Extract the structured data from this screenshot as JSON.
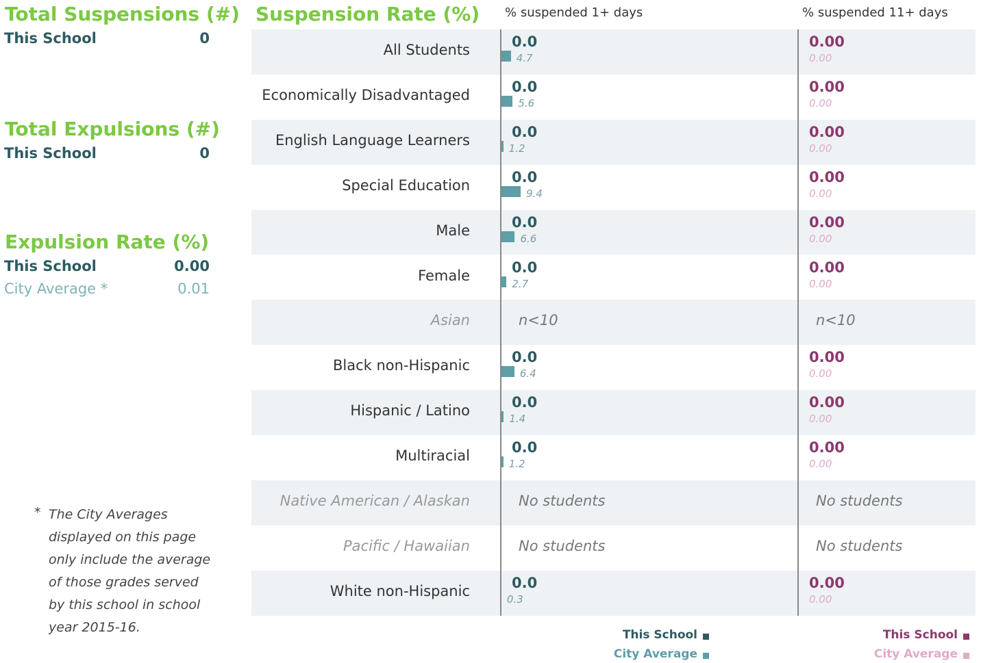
{
  "summary": [
    {
      "title": "Total Suspensions (#)",
      "rows": [
        {
          "label": "This School",
          "value": "0"
        }
      ]
    },
    {
      "title": "Total Expulsions (#)",
      "rows": [
        {
          "label": "This School",
          "value": "0"
        }
      ]
    },
    {
      "title": "Expulsion Rate (%)",
      "rows": [
        {
          "label": "This School",
          "value": "0.00"
        },
        {
          "label": "City Average *",
          "value": "0.01"
        }
      ]
    }
  ],
  "footnote": {
    "mark": "*",
    "text": "The City Averages displayed on this page only include the average of those grades served by this school in school year 2015-16."
  },
  "rates": {
    "title": "Suspension Rate (%)",
    "columns": [
      "% suspended 1+ days",
      "% suspended 11+ days"
    ],
    "rows": [
      {
        "group": "All Students",
        "school1": "0.0",
        "city1": 4.7,
        "school2": "0.00",
        "city2": "0.00"
      },
      {
        "group": "Economically Disadvantaged",
        "school1": "0.0",
        "city1": 5.6,
        "school2": "0.00",
        "city2": "0.00"
      },
      {
        "group": "English Language Learners",
        "school1": "0.0",
        "city1": 1.2,
        "school2": "0.00",
        "city2": "0.00"
      },
      {
        "group": "Special Education",
        "school1": "0.0",
        "city1": 9.4,
        "school2": "0.00",
        "city2": "0.00"
      },
      {
        "group": "Male",
        "school1": "0.0",
        "city1": 6.6,
        "school2": "0.00",
        "city2": "0.00"
      },
      {
        "group": "Female",
        "school1": "0.0",
        "city1": 2.7,
        "school2": "0.00",
        "city2": "0.00"
      },
      {
        "group": "Asian",
        "note1": "n<10",
        "note2": "n<10"
      },
      {
        "group": "Black non-Hispanic",
        "school1": "0.0",
        "city1": 6.4,
        "school2": "0.00",
        "city2": "0.00"
      },
      {
        "group": "Hispanic / Latino",
        "school1": "0.0",
        "city1": 1.4,
        "school2": "0.00",
        "city2": "0.00"
      },
      {
        "group": "Multiracial",
        "school1": "0.0",
        "city1": 1.2,
        "school2": "0.00",
        "city2": "0.00"
      },
      {
        "group": "Native American / Alaskan",
        "note1": "No students",
        "note2": "No students"
      },
      {
        "group": "Pacific / Hawaiian",
        "note1": "No students",
        "note2": "No students"
      },
      {
        "group": "White non-Hispanic",
        "school1": "0.0",
        "city1": 0.3,
        "school2": "0.00",
        "city2": "0.00"
      }
    ],
    "legends": [
      [
        "This School",
        "City Average"
      ],
      [
        "This School",
        "City Average"
      ]
    ]
  }
}
